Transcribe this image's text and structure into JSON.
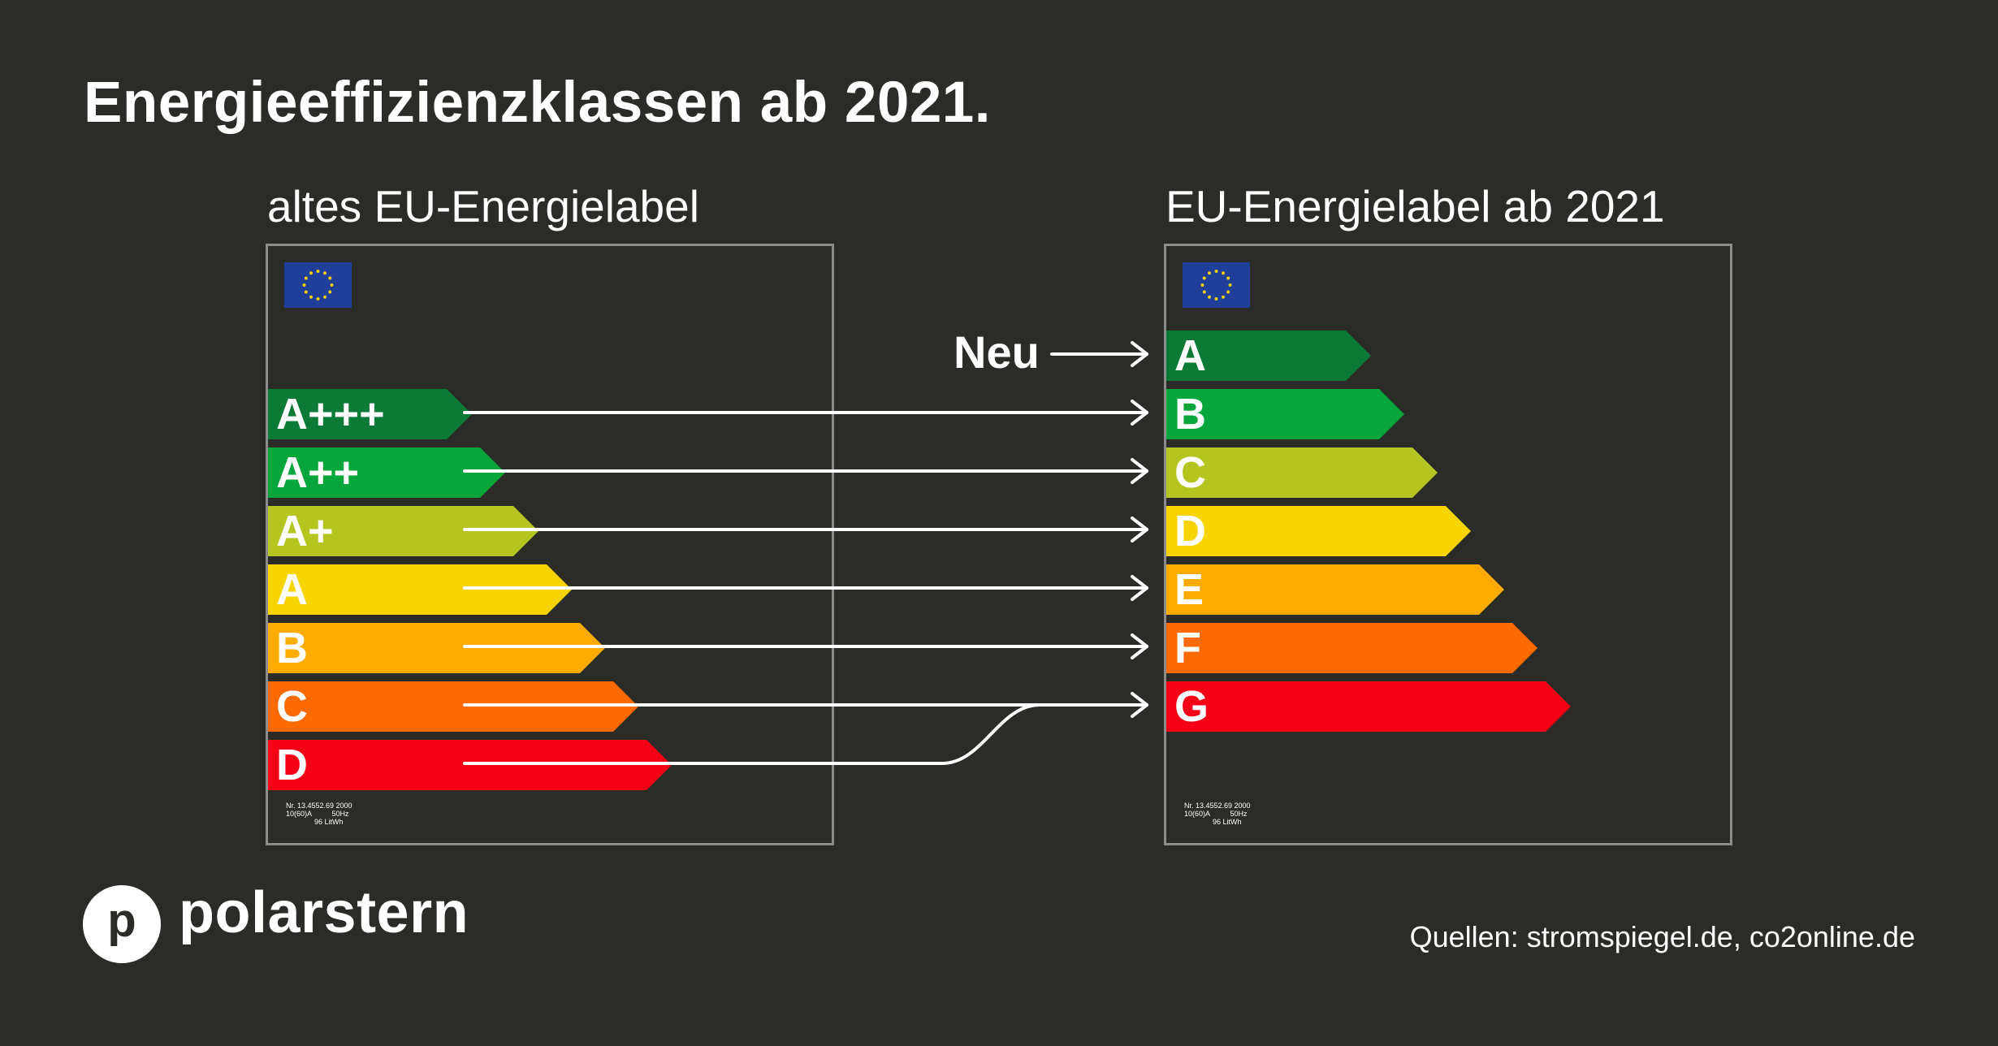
{
  "title": "Energieeffizienzklassen ab 2021.",
  "old_label": {
    "heading": "altes EU-Energielabel",
    "classes": [
      {
        "text": "A+++",
        "color": "#0b7a36"
      },
      {
        "text": "A++",
        "color": "#06a63c"
      },
      {
        "text": "A+",
        "color": "#b4c520"
      },
      {
        "text": "A",
        "color": "#f7d400"
      },
      {
        "text": "B",
        "color": "#fcac00"
      },
      {
        "text": "C",
        "color": "#fc6a00"
      },
      {
        "text": "D",
        "color": "#f60018"
      }
    ],
    "fine_print": "Nr. 13.4552.69 2000\n10(60)A          50Hz\n              96 LitWh"
  },
  "new_label": {
    "heading": "EU-Energielabel ab 2021",
    "classes": [
      {
        "text": "A",
        "color": "#0b7a36"
      },
      {
        "text": "B",
        "color": "#06a63c"
      },
      {
        "text": "C",
        "color": "#b4c520"
      },
      {
        "text": "D",
        "color": "#f7d400"
      },
      {
        "text": "E",
        "color": "#fcac00"
      },
      {
        "text": "F",
        "color": "#fc6a00"
      },
      {
        "text": "G",
        "color": "#f60018"
      }
    ],
    "fine_print": "Nr. 13.4552.69 2000\n10(60)A          50Hz\n              96 LitWh"
  },
  "mapping": {
    "neu_label": "Neu",
    "pairs": [
      {
        "from": "A+++",
        "to": "B"
      },
      {
        "from": "A++",
        "to": "C"
      },
      {
        "from": "A+",
        "to": "D"
      },
      {
        "from": "A",
        "to": "E"
      },
      {
        "from": "B",
        "to": "F"
      },
      {
        "from": "C",
        "to": "G"
      },
      {
        "from": "D",
        "to": "G"
      }
    ],
    "new_only": "A"
  },
  "brand": {
    "logo_letter": "p",
    "name": "polarstern"
  },
  "sources": "Quellen: stromspiegel.de, co2online.de"
}
